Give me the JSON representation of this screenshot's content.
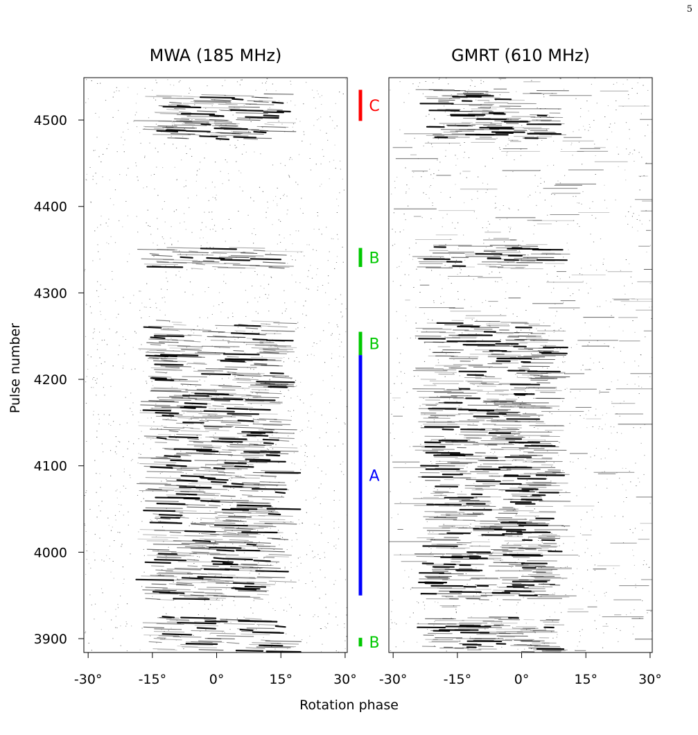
{
  "page_number": "5",
  "chart_data": [
    {
      "type": "heatmap",
      "title": "MWA (185 MHz)",
      "xlabel": "Rotation phase",
      "ylabel": "Pulse number",
      "xlim": [
        -31,
        30.5
      ],
      "ylim": [
        3884,
        4549
      ],
      "x_ticks": [
        -30,
        -15,
        0,
        15,
        30
      ],
      "x_tick_labels": [
        "-30°",
        "-15°",
        "0°",
        "15°",
        "30°"
      ],
      "y_ticks": [
        3900,
        4000,
        4100,
        4200,
        4300,
        4400,
        4500
      ],
      "y_tick_labels": [
        "3900",
        "4000",
        "4100",
        "4200",
        "4300",
        "4400",
        "4500"
      ],
      "colormap": "greyscale (white = no emission, black = bright)",
      "emission_window": [
        -15,
        16
      ],
      "emission_pulse_ranges": [
        [
          3885,
          3925
        ],
        [
          3945,
          4268
        ],
        [
          4328,
          4352
        ],
        [
          4478,
          4530
        ]
      ],
      "notes": "single pulses with drifting subpulses; nulls between bursts"
    },
    {
      "type": "heatmap",
      "title": "GMRT (610 MHz)",
      "xlabel": "Rotation phase",
      "ylabel": "Pulse number",
      "xlim": [
        -31,
        30.5
      ],
      "ylim": [
        3884,
        4549
      ],
      "x_ticks": [
        -30,
        -15,
        0,
        15,
        30
      ],
      "x_tick_labels": [
        "-30°",
        "-15°",
        "0°",
        "15°",
        "30°"
      ],
      "colormap": "greyscale (white = no emission, black = bright)",
      "emission_window": [
        -22,
        8
      ],
      "emission_pulse_ranges": [
        [
          3885,
          3925
        ],
        [
          3945,
          4268
        ],
        [
          4328,
          4356
        ],
        [
          4478,
          4535
        ]
      ],
      "notes": "broader noise streaks across full phase; strongest emission near -15° to -10°"
    }
  ],
  "mode_markers": [
    {
      "label": "C",
      "color": "#ff0000",
      "from": 4499,
      "to": 4535
    },
    {
      "label": "B",
      "color": "#00c800",
      "from": 4330,
      "to": 4352
    },
    {
      "label": "B",
      "color": "#00c800",
      "from": 4228,
      "to": 4255
    },
    {
      "label": "A",
      "color": "#0000ff",
      "from": 3950,
      "to": 4228
    },
    {
      "label": "B",
      "color": "#00c800",
      "from": 3891,
      "to": 3901
    }
  ]
}
